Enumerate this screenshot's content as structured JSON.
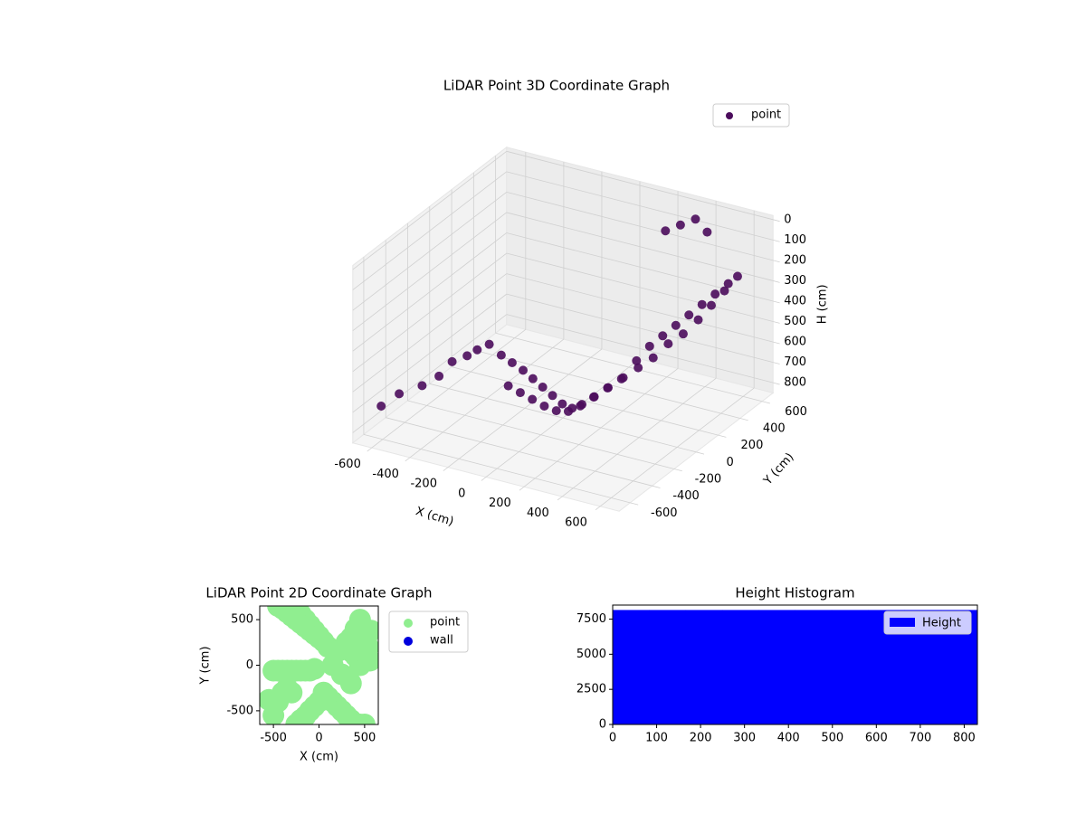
{
  "chart_data": [
    {
      "type": "scatter3d",
      "title": "LiDAR Point 3D Coordinate Graph",
      "xlabel": "X (cm)",
      "ylabel": "Y (cm)",
      "zlabel": "H (cm)",
      "xlim": [
        -700,
        700
      ],
      "ylim": [
        -700,
        700
      ],
      "zlim": [
        850,
        -20
      ],
      "xticks": [
        -600,
        -400,
        -200,
        0,
        200,
        400,
        600
      ],
      "yticks": [
        -600,
        -400,
        -200,
        0,
        200,
        400,
        600
      ],
      "zticks": [
        0,
        100,
        200,
        300,
        400,
        500,
        600,
        700,
        800
      ],
      "legend": "upper right",
      "series": [
        {
          "name": "point",
          "color": "#4b0c5c",
          "x": [
            -620,
            -560,
            -480,
            -420,
            -380,
            -330,
            -300,
            -260,
            -220,
            -180,
            -140,
            -100,
            -60,
            -20,
            20,
            60,
            100,
            150,
            200,
            250,
            300,
            340,
            380,
            420,
            460,
            500,
            540,
            580,
            600,
            560,
            520,
            480,
            430,
            380,
            330,
            280,
            230,
            180,
            130,
            80,
            40,
            0,
            -40,
            -80,
            -120,
            -160,
            250,
            300,
            350,
            400
          ],
          "y": [
            -580,
            -520,
            -450,
            -400,
            -350,
            -300,
            -260,
            -220,
            -180,
            -150,
            -120,
            -100,
            -80,
            -60,
            -40,
            -20,
            0,
            20,
            60,
            100,
            150,
            200,
            250,
            300,
            350,
            400,
            450,
            500,
            550,
            500,
            450,
            400,
            350,
            300,
            250,
            200,
            150,
            100,
            60,
            20,
            -20,
            -60,
            -100,
            -140,
            -180,
            -220,
            500,
            550,
            600,
            620
          ],
          "z": [
            700,
            650,
            620,
            580,
            520,
            500,
            480,
            460,
            520,
            560,
            600,
            640,
            680,
            720,
            760,
            780,
            760,
            720,
            680,
            640,
            560,
            500,
            460,
            420,
            380,
            340,
            300,
            260,
            240,
            300,
            360,
            420,
            480,
            520,
            580,
            620,
            660,
            700,
            740,
            780,
            800,
            790,
            760,
            720,
            680,
            640,
            80,
            60,
            40,
            100
          ]
        }
      ]
    },
    {
      "type": "scatter",
      "title": "LiDAR Point 2D Coordinate Graph",
      "xlabel": "X (cm)",
      "ylabel": "Y (cm)",
      "xlim": [
        -650,
        650
      ],
      "ylim": [
        -650,
        650
      ],
      "xticks": [
        -500,
        0,
        500
      ],
      "yticks": [
        -500,
        0,
        500
      ],
      "legend": "outside upper right",
      "series": [
        {
          "name": "point",
          "color": "#90ee90",
          "x": [
            -450,
            -400,
            -350,
            -300,
            -250,
            -200,
            -150,
            -100,
            -50,
            0,
            -300,
            -250,
            -200,
            -150,
            -100,
            -50,
            0,
            50,
            100,
            200,
            300,
            350,
            400,
            450,
            500,
            520,
            540,
            560,
            450,
            400,
            350,
            300,
            -500,
            -450,
            -400,
            -350,
            -300,
            -250,
            -200,
            -150,
            -100,
            -50,
            -550,
            -500,
            -450,
            -400,
            -350,
            -300,
            -250,
            -200,
            -150,
            -100,
            -50,
            0,
            50,
            100,
            150,
            200,
            250,
            300,
            350,
            400,
            450,
            500,
            570,
            150,
            250,
            350
          ],
          "y": [
            650,
            620,
            580,
            540,
            500,
            460,
            420,
            380,
            340,
            300,
            650,
            600,
            560,
            500,
            440,
            380,
            320,
            260,
            200,
            150,
            200,
            300,
            400,
            500,
            400,
            300,
            200,
            50,
            0,
            100,
            150,
            250,
            -60,
            -60,
            -60,
            -60,
            -60,
            -60,
            -60,
            -60,
            -60,
            -40,
            -380,
            -550,
            -400,
            -300,
            -250,
            -300,
            -650,
            -600,
            -560,
            -500,
            -450,
            -400,
            -300,
            -350,
            -400,
            -450,
            -500,
            -550,
            -600,
            -650,
            -650,
            -650,
            380,
            0,
            -100,
            -200
          ]
        },
        {
          "name": "wall",
          "color": "#0000dd",
          "x": [],
          "y": []
        }
      ]
    },
    {
      "type": "histogram",
      "title": "Height Histogram",
      "xlim": [
        0,
        830
      ],
      "ylim": [
        0,
        8500
      ],
      "xticks": [
        0,
        100,
        200,
        300,
        400,
        500,
        600,
        700,
        800
      ],
      "yticks": [
        0,
        2500,
        5000,
        7500
      ],
      "legend": "upper right",
      "bins": [
        0,
        83,
        166,
        249,
        332,
        415,
        498,
        581,
        664,
        747,
        830
      ],
      "series": [
        {
          "name": "Height",
          "color": "#0000ff",
          "values": [
            8150,
            8150,
            8150,
            8150,
            8150,
            8150,
            8150,
            8150,
            8150,
            8150
          ]
        }
      ]
    }
  ]
}
